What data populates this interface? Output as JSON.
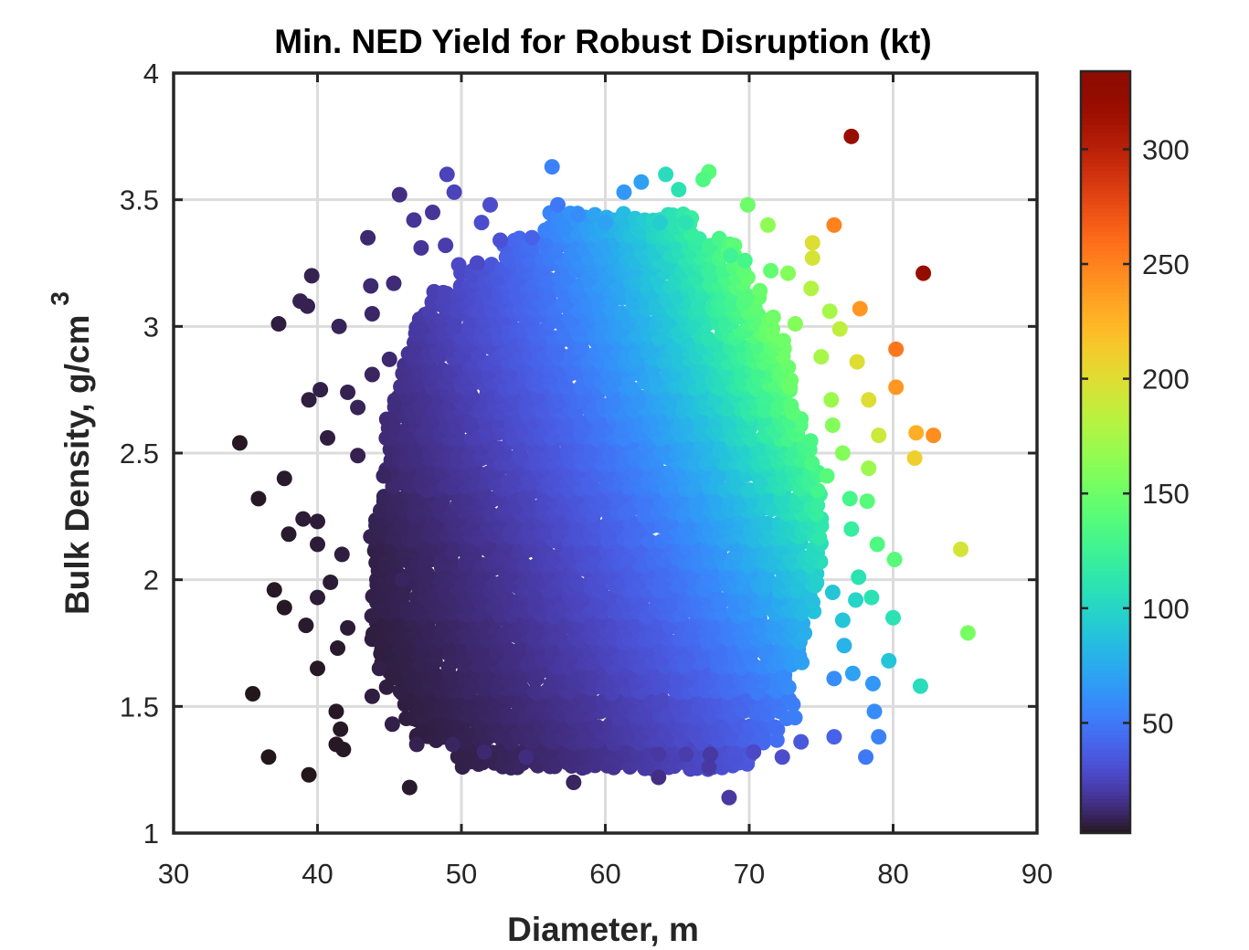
{
  "chart_data": {
    "type": "scatter",
    "title": "Min. NED Yield for Robust Disruption (kt)",
    "xlabel": "Diameter, m",
    "ylabel": "Bulk Density, g/cm",
    "ylabel_superscript": "3",
    "xlim": [
      30,
      90
    ],
    "ylim": [
      1,
      4
    ],
    "xticks": [
      30,
      40,
      50,
      60,
      70,
      80,
      90
    ],
    "yticks": [
      1,
      1.5,
      2,
      2.5,
      3,
      3.5,
      4
    ],
    "ytick_labels": [
      "1",
      "1.5",
      "2",
      "2.5",
      "3",
      "3.5",
      "4"
    ],
    "grid": true,
    "colormap": "turbo",
    "colorbar": {
      "location": "right",
      "clim": [
        2,
        334
      ],
      "ticks": [
        50,
        100,
        150,
        200,
        250,
        300
      ]
    },
    "dense_core_rows": [
      {
        "rho": 1.3,
        "d_range": [
          50,
          70
        ],
        "yield_range": [
          7,
          35
        ]
      },
      {
        "rho": 1.4,
        "d_range": [
          47,
          72
        ],
        "yield_range": [
          6,
          46
        ]
      },
      {
        "rho": 1.5,
        "d_range": [
          46,
          73
        ],
        "yield_range": [
          6,
          53
        ]
      },
      {
        "rho": 1.6,
        "d_range": [
          45,
          73
        ],
        "yield_range": [
          6,
          61
        ]
      },
      {
        "rho": 1.7,
        "d_range": [
          44.5,
          74
        ],
        "yield_range": [
          6,
          72
        ]
      },
      {
        "rho": 1.8,
        "d_range": [
          44,
          74
        ],
        "yield_range": [
          6,
          78
        ]
      },
      {
        "rho": 1.9,
        "d_range": [
          44,
          74.5
        ],
        "yield_range": [
          7,
          88
        ]
      },
      {
        "rho": 2.0,
        "d_range": [
          44,
          75
        ],
        "yield_range": [
          7,
          98
        ]
      },
      {
        "rho": 2.1,
        "d_range": [
          44,
          75
        ],
        "yield_range": [
          7,
          106
        ]
      },
      {
        "rho": 2.2,
        "d_range": [
          44,
          75
        ],
        "yield_range": [
          8,
          114
        ]
      },
      {
        "rho": 2.3,
        "d_range": [
          44.5,
          75
        ],
        "yield_range": [
          9,
          122
        ]
      },
      {
        "rho": 2.4,
        "d_range": [
          45,
          75
        ],
        "yield_range": [
          11,
          131
        ]
      },
      {
        "rho": 2.5,
        "d_range": [
          45,
          74.5
        ],
        "yield_range": [
          12,
          135
        ]
      },
      {
        "rho": 2.6,
        "d_range": [
          45,
          74
        ],
        "yield_range": [
          13,
          141
        ]
      },
      {
        "rho": 2.7,
        "d_range": [
          45.5,
          73.5
        ],
        "yield_range": [
          14,
          146
        ]
      },
      {
        "rho": 2.8,
        "d_range": [
          46,
          73
        ],
        "yield_range": [
          16,
          150
        ]
      },
      {
        "rho": 2.9,
        "d_range": [
          46.5,
          72.5
        ],
        "yield_range": [
          18,
          152
        ]
      },
      {
        "rho": 3.0,
        "d_range": [
          47,
          72
        ],
        "yield_range": [
          20,
          155
        ]
      },
      {
        "rho": 3.1,
        "d_range": [
          48,
          71
        ],
        "yield_range": [
          23,
          150
        ]
      },
      {
        "rho": 3.2,
        "d_range": [
          50,
          70
        ],
        "yield_range": [
          28,
          147
        ]
      },
      {
        "rho": 3.3,
        "d_range": [
          53,
          69
        ],
        "yield_range": [
          39,
          142
        ]
      },
      {
        "rho": 3.4,
        "d_range": [
          56,
          66
        ],
        "yield_range": [
          55,
          120
        ]
      }
    ],
    "points_columns": [
      "diameter_m",
      "bulk_density_g_cm3",
      "yield_kt"
    ],
    "points": [
      [
        77.1,
        3.75,
        320
      ],
      [
        82.1,
        3.21,
        322
      ],
      [
        75.9,
        3.4,
        250
      ],
      [
        77.7,
        3.07,
        240
      ],
      [
        80.2,
        2.91,
        255
      ],
      [
        80.2,
        2.76,
        240
      ],
      [
        81.6,
        2.58,
        228
      ],
      [
        82.8,
        2.57,
        245
      ],
      [
        81.5,
        2.48,
        210
      ],
      [
        84.7,
        2.12,
        195
      ],
      [
        85.2,
        1.79,
        155
      ],
      [
        81.9,
        1.58,
        105
      ],
      [
        79.7,
        1.68,
        90
      ],
      [
        80.0,
        1.85,
        110
      ],
      [
        80.1,
        2.08,
        140
      ],
      [
        78.9,
        2.14,
        135
      ],
      [
        79.0,
        2.57,
        190
      ],
      [
        78.3,
        2.44,
        170
      ],
      [
        78.3,
        2.71,
        200
      ],
      [
        77.5,
        2.86,
        200
      ],
      [
        76.3,
        2.99,
        185
      ],
      [
        74.4,
        3.33,
        200
      ],
      [
        74.4,
        3.27,
        195
      ],
      [
        74.3,
        3.15,
        180
      ],
      [
        71.3,
        3.4,
        165
      ],
      [
        69.9,
        3.48,
        150
      ],
      [
        67.2,
        3.61,
        140
      ],
      [
        66.8,
        3.58,
        135
      ],
      [
        65.1,
        3.54,
        110
      ],
      [
        64.2,
        3.6,
        105
      ],
      [
        62.5,
        3.57,
        70
      ],
      [
        61.3,
        3.53,
        65
      ],
      [
        56.3,
        3.63,
        55
      ],
      [
        56.7,
        3.48,
        50
      ],
      [
        49.0,
        3.6,
        25
      ],
      [
        49.5,
        3.53,
        25
      ],
      [
        45.7,
        3.52,
        15
      ],
      [
        48.0,
        3.45,
        18
      ],
      [
        52.0,
        3.48,
        30
      ],
      [
        43.5,
        3.35,
        12
      ],
      [
        39.6,
        3.2,
        8
      ],
      [
        38.8,
        3.1,
        8
      ],
      [
        39.3,
        3.08,
        8
      ],
      [
        37.3,
        3.01,
        6
      ],
      [
        41.5,
        3.0,
        9
      ],
      [
        43.7,
        3.16,
        12
      ],
      [
        45.3,
        3.17,
        13
      ],
      [
        43.8,
        3.05,
        11
      ],
      [
        43.8,
        2.81,
        10
      ],
      [
        40.2,
        2.75,
        7
      ],
      [
        39.4,
        2.71,
        6
      ],
      [
        42.1,
        2.74,
        8
      ],
      [
        40.7,
        2.56,
        6
      ],
      [
        34.6,
        2.54,
        3
      ],
      [
        35.9,
        2.32,
        3
      ],
      [
        37.7,
        2.4,
        4
      ],
      [
        39.0,
        2.24,
        5
      ],
      [
        40.0,
        2.23,
        5
      ],
      [
        38.0,
        2.18,
        4
      ],
      [
        40.0,
        2.14,
        5
      ],
      [
        41.7,
        2.1,
        6
      ],
      [
        37.0,
        1.96,
        3
      ],
      [
        37.7,
        1.89,
        3
      ],
      [
        40.9,
        1.99,
        5
      ],
      [
        40.0,
        1.93,
        5
      ],
      [
        39.2,
        1.82,
        4
      ],
      [
        42.1,
        1.81,
        5
      ],
      [
        35.5,
        1.55,
        2
      ],
      [
        40.0,
        1.65,
        3
      ],
      [
        41.4,
        1.73,
        4
      ],
      [
        41.3,
        1.48,
        3
      ],
      [
        41.6,
        1.41,
        3
      ],
      [
        41.3,
        1.35,
        3
      ],
      [
        36.6,
        1.3,
        2
      ],
      [
        41.8,
        1.33,
        3
      ],
      [
        39.4,
        1.23,
        2
      ],
      [
        46.4,
        1.18,
        4
      ],
      [
        57.8,
        1.2,
        10
      ],
      [
        63.7,
        1.22,
        15
      ],
      [
        68.6,
        1.14,
        20
      ],
      [
        67.2,
        1.26,
        20
      ],
      [
        67.3,
        1.31,
        20
      ],
      [
        72.3,
        1.3,
        30
      ],
      [
        73.6,
        1.36,
        35
      ],
      [
        75.9,
        1.38,
        40
      ],
      [
        78.1,
        1.3,
        50
      ],
      [
        79.0,
        1.38,
        55
      ],
      [
        78.7,
        1.48,
        60
      ],
      [
        78.6,
        1.59,
        65
      ],
      [
        77.2,
        1.63,
        70
      ],
      [
        75.9,
        1.61,
        60
      ],
      [
        76.6,
        1.74,
        80
      ],
      [
        76.5,
        1.84,
        90
      ],
      [
        77.4,
        1.92,
        100
      ],
      [
        78.5,
        1.93,
        110
      ],
      [
        77.6,
        2.01,
        110
      ],
      [
        75.8,
        1.95,
        90
      ],
      [
        77.1,
        2.2,
        120
      ],
      [
        78.2,
        2.31,
        140
      ],
      [
        77.0,
        2.32,
        130
      ],
      [
        76.5,
        2.5,
        160
      ],
      [
        75.4,
        2.41,
        140
      ],
      [
        75.8,
        2.61,
        160
      ],
      [
        75.7,
        2.71,
        170
      ],
      [
        75.0,
        2.88,
        175
      ],
      [
        75.6,
        3.06,
        175
      ],
      [
        73.2,
        3.01,
        160
      ],
      [
        72.7,
        3.21,
        160
      ],
      [
        71.5,
        3.22,
        145
      ],
      [
        68.7,
        3.28,
        125
      ],
      [
        69.7,
        3.26,
        130
      ],
      [
        65.6,
        3.41,
        110
      ],
      [
        63.8,
        3.41,
        95
      ],
      [
        58.1,
        3.44,
        60
      ],
      [
        60.0,
        3.41,
        70
      ],
      [
        54.9,
        3.35,
        40
      ],
      [
        52.7,
        3.34,
        32
      ],
      [
        51.4,
        3.41,
        30
      ],
      [
        48.9,
        3.32,
        22
      ],
      [
        47.2,
        3.31,
        18
      ],
      [
        46.7,
        3.42,
        18
      ],
      [
        51.1,
        3.25,
        28
      ],
      [
        45.0,
        2.87,
        12
      ],
      [
        42.8,
        2.68,
        9
      ],
      [
        42.8,
        2.49,
        8
      ],
      [
        44.6,
        2.41,
        10
      ],
      [
        43.7,
        2.17,
        8
      ],
      [
        45.9,
        2.0,
        10
      ],
      [
        44.3,
        1.65,
        7
      ],
      [
        43.8,
        1.54,
        6
      ],
      [
        45.2,
        1.43,
        7
      ],
      [
        46.9,
        1.35,
        8
      ],
      [
        49.4,
        1.35,
        10
      ],
      [
        51.6,
        1.32,
        12
      ],
      [
        54.5,
        1.3,
        14
      ],
      [
        63.7,
        1.31,
        20
      ],
      [
        65.6,
        1.31,
        22
      ],
      [
        70.3,
        1.32,
        28
      ]
    ]
  }
}
